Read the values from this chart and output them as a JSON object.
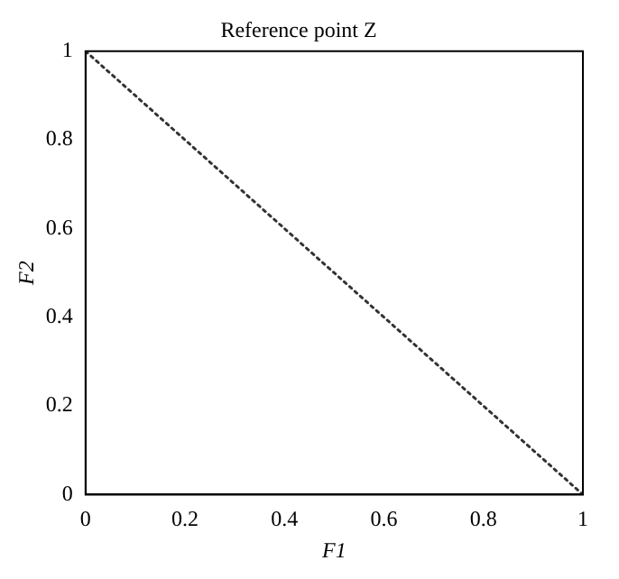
{
  "chart_data": {
    "type": "line",
    "title": "Reference point Z",
    "xlabel": "F1",
    "ylabel": "F2",
    "x": [
      0,
      1
    ],
    "series": [
      {
        "color": "#333333",
        "values": [
          1,
          0
        ]
      }
    ],
    "xlim": [
      0,
      1
    ],
    "ylim": [
      0,
      1
    ],
    "xticks": [
      0,
      0.2,
      0.4,
      0.6,
      0.8,
      1
    ],
    "yticks": [
      0,
      0.2,
      0.4,
      0.6,
      0.8,
      1
    ],
    "grid": false,
    "legend": false,
    "marker": "none",
    "line_style": "dotted"
  }
}
